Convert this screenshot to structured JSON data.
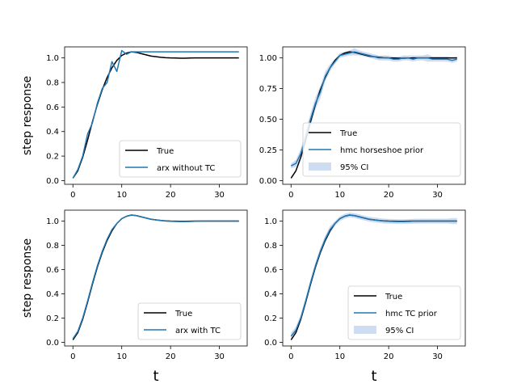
{
  "figure": {
    "background": "#ffffff"
  },
  "colors": {
    "true": "#000000",
    "model": "#1f77b4",
    "ci": "#aec7e8"
  },
  "chart_data": [
    {
      "type": "line",
      "ylabel": "step response",
      "xlabel": "",
      "xlim": [
        -1.7,
        35.7
      ],
      "ylim": [
        -0.03,
        1.09
      ],
      "xticks": [
        0,
        10,
        20,
        30
      ],
      "yticks": [
        0.0,
        0.2,
        0.4,
        0.6,
        0.8,
        1.0
      ],
      "ytick_labels": [
        "0.0",
        "0.2",
        "0.4",
        "0.6",
        "0.8",
        "1.0"
      ],
      "legend_placement": "lower-right",
      "series": [
        {
          "name": "True",
          "color": "#000000",
          "x": [
            0,
            1,
            2,
            3,
            4,
            5,
            6,
            7,
            8,
            9,
            10,
            11,
            12,
            13,
            14,
            15,
            16,
            17,
            18,
            19,
            20,
            21,
            22,
            23,
            24,
            25,
            26,
            27,
            28,
            29,
            30,
            31,
            32,
            33,
            34
          ],
          "y": [
            0.02,
            0.08,
            0.19,
            0.33,
            0.48,
            0.62,
            0.74,
            0.84,
            0.92,
            0.98,
            1.02,
            1.04,
            1.05,
            1.045,
            1.035,
            1.025,
            1.015,
            1.01,
            1.005,
            1.002,
            1.0,
            0.999,
            0.998,
            0.998,
            0.999,
            1.0,
            1.0,
            1.0,
            1.0,
            1.0,
            1.0,
            1.0,
            1.0,
            1.0,
            1.0
          ]
        },
        {
          "name": "arx without TC",
          "color": "#1f77b4",
          "x": [
            0,
            1,
            2,
            3,
            4,
            5,
            6,
            7,
            8,
            9,
            10,
            11,
            12,
            13,
            14,
            15,
            16,
            17,
            18,
            19,
            20,
            21,
            22,
            23,
            24,
            25,
            26,
            27,
            28,
            29,
            30,
            31,
            32,
            33,
            34
          ],
          "y": [
            0.02,
            0.09,
            0.2,
            0.38,
            0.47,
            0.63,
            0.75,
            0.8,
            0.97,
            0.89,
            1.06,
            1.03,
            1.05,
            1.05,
            1.05,
            1.05,
            1.05,
            1.05,
            1.05,
            1.05,
            1.05,
            1.05,
            1.05,
            1.05,
            1.05,
            1.05,
            1.05,
            1.05,
            1.05,
            1.05,
            1.05,
            1.05,
            1.05,
            1.05,
            1.05
          ]
        }
      ]
    },
    {
      "type": "line",
      "ylabel": "",
      "xlabel": "",
      "xlim": [
        -1.7,
        35.7
      ],
      "ylim": [
        -0.03,
        1.09
      ],
      "xticks": [
        0,
        10,
        20,
        30
      ],
      "yticks": [
        0.0,
        0.25,
        0.5,
        0.75,
        1.0
      ],
      "ytick_labels": [
        "0.00",
        "0.25",
        "0.50",
        "0.75",
        "1.00"
      ],
      "legend_placement": "lower-right",
      "series": [
        {
          "name": "True",
          "color": "#000000",
          "x": [
            0,
            1,
            2,
            3,
            4,
            5,
            6,
            7,
            8,
            9,
            10,
            11,
            12,
            13,
            14,
            15,
            16,
            17,
            18,
            19,
            20,
            21,
            22,
            23,
            24,
            25,
            26,
            27,
            28,
            29,
            30,
            31,
            32,
            33,
            34
          ],
          "y": [
            0.02,
            0.08,
            0.19,
            0.33,
            0.48,
            0.62,
            0.74,
            0.84,
            0.92,
            0.98,
            1.02,
            1.04,
            1.05,
            1.045,
            1.035,
            1.025,
            1.015,
            1.01,
            1.005,
            1.002,
            1.0,
            0.999,
            0.998,
            0.998,
            0.999,
            1.0,
            1.0,
            1.0,
            1.0,
            1.0,
            1.0,
            1.0,
            1.0,
            1.0,
            1.0
          ]
        },
        {
          "name": "hmc horseshoe prior",
          "color": "#1f77b4",
          "x": [
            0,
            1,
            2,
            3,
            4,
            5,
            6,
            7,
            8,
            9,
            10,
            11,
            12,
            13,
            14,
            15,
            16,
            17,
            18,
            19,
            20,
            21,
            22,
            23,
            24,
            25,
            26,
            27,
            28,
            29,
            30,
            31,
            32,
            33,
            34
          ],
          "y": [
            0.12,
            0.14,
            0.22,
            0.36,
            0.5,
            0.63,
            0.72,
            0.85,
            0.92,
            0.97,
            1.02,
            1.03,
            1.04,
            1.05,
            1.04,
            1.03,
            1.02,
            1.01,
            1.0,
            1.0,
            1.0,
            0.99,
            0.99,
            1.0,
            1.0,
            0.99,
            1.0,
            1.0,
            1.0,
            0.99,
            0.99,
            0.99,
            0.99,
            0.98,
            0.99
          ]
        },
        {
          "name": "95% CI",
          "color": "#aec7e8",
          "x": [
            0,
            1,
            2,
            3,
            4,
            5,
            6,
            7,
            8,
            9,
            10,
            11,
            12,
            13,
            14,
            15,
            16,
            17,
            18,
            19,
            20,
            21,
            22,
            23,
            24,
            25,
            26,
            27,
            28,
            29,
            30,
            31,
            32,
            33,
            34
          ],
          "lower": [
            0.1,
            0.11,
            0.18,
            0.31,
            0.45,
            0.58,
            0.67,
            0.81,
            0.89,
            0.95,
            1.0,
            1.01,
            1.02,
            1.02,
            1.02,
            1.01,
            1.0,
            0.99,
            0.98,
            0.98,
            0.98,
            0.97,
            0.97,
            0.98,
            0.98,
            0.97,
            0.98,
            0.98,
            0.97,
            0.97,
            0.97,
            0.97,
            0.97,
            0.96,
            0.97
          ],
          "upper": [
            0.14,
            0.17,
            0.26,
            0.41,
            0.55,
            0.68,
            0.77,
            0.89,
            0.95,
            0.99,
            1.04,
            1.05,
            1.06,
            1.08,
            1.06,
            1.05,
            1.04,
            1.03,
            1.02,
            1.02,
            1.02,
            1.01,
            1.01,
            1.02,
            1.02,
            1.02,
            1.02,
            1.02,
            1.03,
            1.01,
            1.01,
            1.01,
            1.01,
            1.0,
            1.01
          ]
        }
      ]
    },
    {
      "type": "line",
      "ylabel": "step response",
      "xlabel": "t",
      "xlim": [
        -1.7,
        35.7
      ],
      "ylim": [
        -0.03,
        1.09
      ],
      "xticks": [
        0,
        10,
        20,
        30
      ],
      "yticks": [
        0.0,
        0.2,
        0.4,
        0.6,
        0.8,
        1.0
      ],
      "ytick_labels": [
        "0.0",
        "0.2",
        "0.4",
        "0.6",
        "0.8",
        "1.0"
      ],
      "legend_placement": "lower-right",
      "series": [
        {
          "name": "True",
          "color": "#000000",
          "x": [
            0,
            1,
            2,
            3,
            4,
            5,
            6,
            7,
            8,
            9,
            10,
            11,
            12,
            13,
            14,
            15,
            16,
            17,
            18,
            19,
            20,
            21,
            22,
            23,
            24,
            25,
            26,
            27,
            28,
            29,
            30,
            31,
            32,
            33,
            34
          ],
          "y": [
            0.02,
            0.08,
            0.19,
            0.33,
            0.48,
            0.62,
            0.74,
            0.84,
            0.92,
            0.98,
            1.02,
            1.04,
            1.05,
            1.045,
            1.035,
            1.025,
            1.015,
            1.01,
            1.005,
            1.002,
            1.0,
            0.999,
            0.998,
            0.998,
            0.999,
            1.0,
            1.0,
            1.0,
            1.0,
            1.0,
            1.0,
            1.0,
            1.0,
            1.0,
            1.0
          ]
        },
        {
          "name": "arx with TC",
          "color": "#1f77b4",
          "x": [
            0,
            1,
            2,
            3,
            4,
            5,
            6,
            7,
            8,
            9,
            10,
            11,
            12,
            13,
            14,
            15,
            16,
            17,
            18,
            19,
            20,
            21,
            22,
            23,
            24,
            25,
            26,
            27,
            28,
            29,
            30,
            31,
            32,
            33,
            34
          ],
          "y": [
            0.03,
            0.09,
            0.2,
            0.34,
            0.49,
            0.63,
            0.75,
            0.85,
            0.93,
            0.98,
            1.02,
            1.04,
            1.05,
            1.045,
            1.035,
            1.025,
            1.015,
            1.01,
            1.005,
            1.0,
            0.998,
            0.997,
            0.996,
            0.996,
            0.997,
            0.998,
            0.999,
            1.0,
            1.0,
            1.0,
            1.0,
            1.0,
            1.0,
            1.0,
            1.0
          ]
        }
      ]
    },
    {
      "type": "line",
      "ylabel": "",
      "xlabel": "t",
      "xlim": [
        -1.7,
        35.7
      ],
      "ylim": [
        -0.03,
        1.09
      ],
      "xticks": [
        0,
        10,
        20,
        30
      ],
      "yticks": [
        0.0,
        0.2,
        0.4,
        0.6,
        0.8,
        1.0
      ],
      "ytick_labels": [
        "0.0",
        "0.2",
        "0.4",
        "0.6",
        "0.8",
        "1.0"
      ],
      "legend_placement": "lower-right",
      "series": [
        {
          "name": "True",
          "color": "#000000",
          "x": [
            0,
            1,
            2,
            3,
            4,
            5,
            6,
            7,
            8,
            9,
            10,
            11,
            12,
            13,
            14,
            15,
            16,
            17,
            18,
            19,
            20,
            21,
            22,
            23,
            24,
            25,
            26,
            27,
            28,
            29,
            30,
            31,
            32,
            33,
            34
          ],
          "y": [
            0.02,
            0.08,
            0.19,
            0.33,
            0.48,
            0.62,
            0.74,
            0.84,
            0.92,
            0.98,
            1.02,
            1.04,
            1.05,
            1.045,
            1.035,
            1.025,
            1.015,
            1.01,
            1.005,
            1.002,
            1.0,
            0.999,
            0.998,
            0.998,
            0.999,
            1.0,
            1.0,
            1.0,
            1.0,
            1.0,
            1.0,
            1.0,
            1.0,
            1.0,
            1.0
          ]
        },
        {
          "name": "hmc TC prior",
          "color": "#1f77b4",
          "x": [
            0,
            1,
            2,
            3,
            4,
            5,
            6,
            7,
            8,
            9,
            10,
            11,
            12,
            13,
            14,
            15,
            16,
            17,
            18,
            19,
            20,
            21,
            22,
            23,
            24,
            25,
            26,
            27,
            28,
            29,
            30,
            31,
            32,
            33,
            34
          ],
          "y": [
            0.05,
            0.1,
            0.2,
            0.34,
            0.49,
            0.63,
            0.75,
            0.85,
            0.93,
            0.98,
            1.02,
            1.04,
            1.05,
            1.045,
            1.035,
            1.025,
            1.015,
            1.01,
            1.005,
            1.0,
            0.998,
            0.997,
            0.996,
            0.996,
            0.997,
            0.998,
            0.999,
            1.0,
            1.0,
            1.0,
            1.0,
            1.0,
            1.0,
            1.0,
            1.0
          ]
        },
        {
          "name": "95% CI",
          "color": "#aec7e8",
          "x": [
            0,
            1,
            2,
            3,
            4,
            5,
            6,
            7,
            8,
            9,
            10,
            11,
            12,
            13,
            14,
            15,
            16,
            17,
            18,
            19,
            20,
            21,
            22,
            23,
            24,
            25,
            26,
            27,
            28,
            29,
            30,
            31,
            32,
            33,
            34
          ],
          "lower": [
            0.02,
            0.07,
            0.17,
            0.31,
            0.46,
            0.6,
            0.72,
            0.82,
            0.9,
            0.96,
            1.0,
            1.02,
            1.03,
            1.025,
            1.015,
            1.005,
            0.995,
            0.99,
            0.985,
            0.98,
            0.978,
            0.977,
            0.976,
            0.976,
            0.977,
            0.978,
            0.979,
            0.98,
            0.98,
            0.98,
            0.98,
            0.98,
            0.98,
            0.975,
            0.975
          ],
          "upper": [
            0.08,
            0.13,
            0.23,
            0.37,
            0.52,
            0.66,
            0.78,
            0.88,
            0.96,
            1.0,
            1.04,
            1.06,
            1.07,
            1.065,
            1.055,
            1.045,
            1.035,
            1.03,
            1.025,
            1.02,
            1.018,
            1.017,
            1.016,
            1.016,
            1.017,
            1.018,
            1.019,
            1.02,
            1.02,
            1.02,
            1.02,
            1.02,
            1.02,
            1.025,
            1.025
          ]
        }
      ]
    }
  ]
}
